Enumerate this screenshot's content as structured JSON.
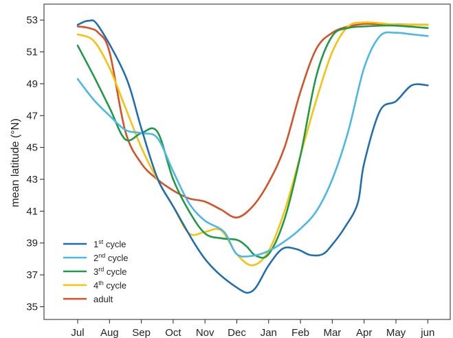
{
  "chart_data": {
    "type": "line",
    "title": "",
    "xlabel": "",
    "ylabel": "mean latitude (°N)",
    "categories": [
      "Jul",
      "Aug",
      "Sep",
      "Oct",
      "Nov",
      "Dec",
      "Jan",
      "Feb",
      "Mar",
      "Apr",
      "May",
      "jun"
    ],
    "yticks": [
      35,
      37,
      39,
      41,
      43,
      45,
      47,
      49,
      51,
      53
    ],
    "ylim": [
      34.2,
      54.0
    ],
    "grid": false,
    "legend_position": "bottom-left",
    "series": [
      {
        "name": "1st cycle",
        "base": "1",
        "sup": "st",
        "suffix": " cycle",
        "color": "#1f6eb4",
        "x": [
          0,
          0.33,
          0.66,
          1.5,
          2,
          2.5,
          3,
          4,
          5,
          5.5,
          6,
          6.45,
          6.9,
          7.3,
          7.7,
          8.0,
          8.4,
          8.8,
          9,
          9.5,
          10,
          10.5,
          11
        ],
        "y": [
          52.7,
          52.95,
          52.6,
          49.5,
          46.2,
          43.1,
          41.3,
          38.0,
          36.2,
          36.0,
          37.6,
          38.65,
          38.6,
          38.25,
          38.3,
          38.9,
          40.0,
          41.5,
          44.0,
          47.3,
          47.9,
          48.9,
          48.9
        ]
      },
      {
        "name": "2nd cycle",
        "base": "2",
        "sup": "nd",
        "suffix": " cycle",
        "color": "#4ab8e6",
        "x": [
          0,
          0.5,
          1,
          1.5,
          2,
          2.5,
          3,
          3.5,
          4,
          4.6,
          5,
          5.5,
          6,
          6.5,
          7,
          7.5,
          8,
          8.5,
          9,
          9.5,
          10,
          10.5,
          11
        ],
        "y": [
          49.3,
          48.0,
          47.0,
          46.1,
          45.9,
          45.6,
          43.5,
          41.5,
          40.4,
          39.7,
          38.3,
          38.2,
          38.5,
          39.1,
          39.9,
          41.0,
          43.0,
          46.0,
          50.0,
          52.0,
          52.2,
          52.1,
          52.0
        ]
      },
      {
        "name": "3rd cycle",
        "base": "3",
        "sup": "rd",
        "suffix": " cycle",
        "color": "#1d9a44",
        "x": [
          0,
          0.5,
          1,
          1.5,
          2,
          2.5,
          3,
          3.5,
          4,
          4.5,
          5,
          5.3,
          5.6,
          6,
          6.5,
          7,
          7.5,
          8,
          8.5,
          9,
          9.5,
          10,
          11
        ],
        "y": [
          51.4,
          49.5,
          47.5,
          45.5,
          45.9,
          46.0,
          43.0,
          41.0,
          39.6,
          39.3,
          39.2,
          38.8,
          38.2,
          38.3,
          40.5,
          44.5,
          49.5,
          52.0,
          52.5,
          52.6,
          52.65,
          52.65,
          52.5
        ]
      },
      {
        "name": "4th cycle",
        "base": "4",
        "sup": "th",
        "suffix": " cycle",
        "color": "#f7c20e",
        "x": [
          0,
          0.5,
          1,
          1.5,
          2,
          2.5,
          3,
          3.5,
          4,
          4.5,
          5,
          5.5,
          6,
          6.5,
          7,
          7.5,
          8,
          8.5,
          9,
          9.5,
          10,
          10.5,
          11
        ],
        "y": [
          52.1,
          51.7,
          50.0,
          47.5,
          45.0,
          43.0,
          41.3,
          39.6,
          39.7,
          39.8,
          38.3,
          37.6,
          38.5,
          41.0,
          44.5,
          48.0,
          51.0,
          52.6,
          52.85,
          52.8,
          52.7,
          52.7,
          52.7
        ]
      },
      {
        "name": "adult",
        "base": "adult",
        "sup": "",
        "suffix": "",
        "color": "#d85024",
        "x": [
          0,
          0.35,
          0.65,
          1,
          1.5,
          2,
          2.5,
          3,
          3.5,
          4,
          4.5,
          5,
          5.5,
          6,
          6.5,
          7,
          7.5,
          8,
          8.5,
          9,
          9.5,
          10,
          11
        ],
        "y": [
          52.6,
          52.5,
          52.2,
          51.0,
          46.0,
          44.0,
          43.0,
          42.3,
          41.8,
          41.6,
          41.1,
          40.6,
          41.3,
          42.8,
          45.0,
          48.5,
          51.2,
          52.2,
          52.6,
          52.75,
          52.75,
          52.72,
          52.7
        ]
      }
    ]
  }
}
